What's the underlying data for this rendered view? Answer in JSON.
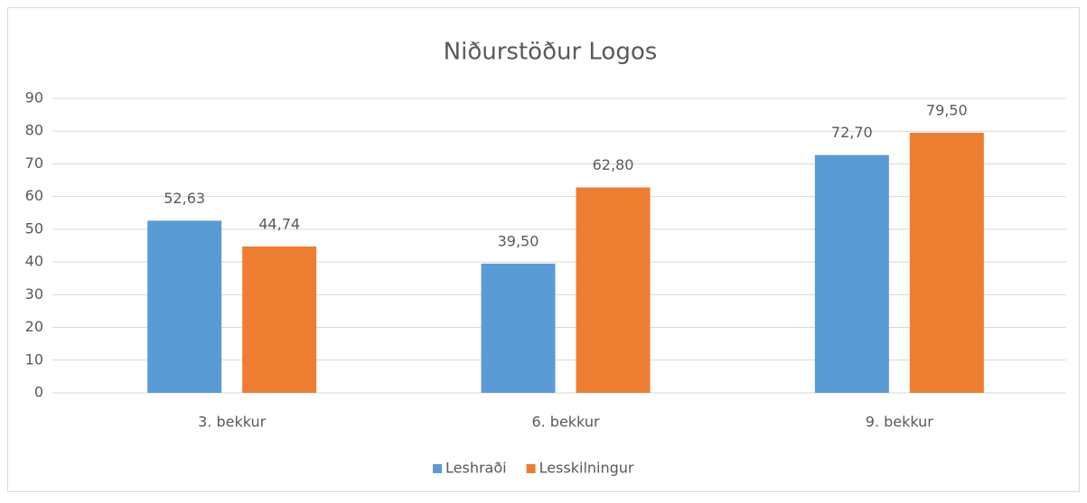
{
  "chart_data": {
    "type": "bar",
    "title": "Niðurstöður Logos",
    "categories": [
      "3. bekkur",
      "6. bekkur",
      "9. bekkur"
    ],
    "series": [
      {
        "name": "Leshraði",
        "color": "#5b9bd5",
        "values": [
          52.63,
          39.5,
          72.7
        ],
        "value_labels": [
          "52,63",
          "39,50",
          "72,70"
        ]
      },
      {
        "name": "Lesskilningur",
        "color": "#ed7d31",
        "values": [
          44.74,
          62.8,
          79.5
        ],
        "value_labels": [
          "44,74",
          "62,80",
          "79,50"
        ]
      }
    ],
    "ylim": [
      0,
      90
    ],
    "yticks": [
      0,
      10,
      20,
      30,
      40,
      50,
      60,
      70,
      80,
      90
    ],
    "grid": true,
    "legend": "bottom"
  }
}
